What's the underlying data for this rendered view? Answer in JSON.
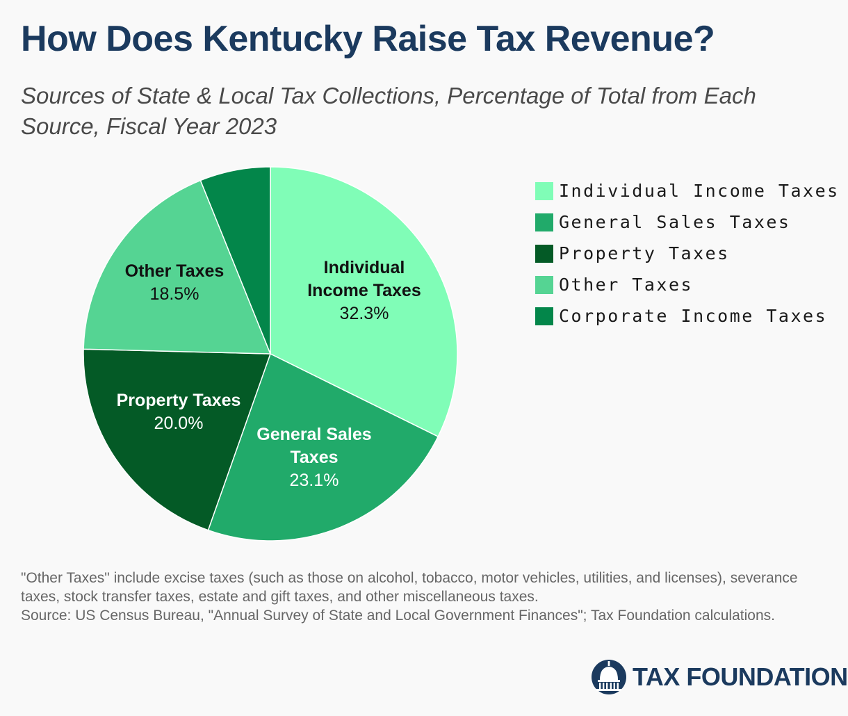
{
  "header": {
    "title": "How Does Kentucky Raise Tax Revenue?",
    "subtitle": "Sources of State & Local Tax Collections, Percentage of Total from Each Source, Fiscal Year 2023"
  },
  "chart_data": {
    "type": "pie",
    "title": "How Does Kentucky Raise Tax Revenue?",
    "subtitle": "Sources of State & Local Tax Collections, Percentage of Total from Each Source, Fiscal Year 2023",
    "slices": [
      {
        "label": "Individual Income Taxes",
        "value": 32.3,
        "display": "32.3%",
        "color": "#80fdb7",
        "text_lines": [
          "Individual",
          "Income Taxes"
        ],
        "text_color": "#111111"
      },
      {
        "label": "General Sales Taxes",
        "value": 23.1,
        "display": "23.1%",
        "color": "#21aa6a",
        "text_lines": [
          "General Sales",
          "Taxes"
        ],
        "text_color": "#ffffff"
      },
      {
        "label": "Property Taxes",
        "value": 20.0,
        "display": "20.0%",
        "color": "#045a26",
        "text_lines": [
          "Property Taxes"
        ],
        "text_color": "#ffffff"
      },
      {
        "label": "Other Taxes",
        "value": 18.5,
        "display": "18.5%",
        "color": "#55d493",
        "text_lines": [
          "Other Taxes"
        ],
        "text_color": "#111111"
      },
      {
        "label": "Corporate Income Taxes",
        "value": 6.1,
        "display": "",
        "color": "#03864a",
        "text_lines": [],
        "text_color": "#ffffff"
      }
    ],
    "legend": {
      "placement": "right",
      "entries": [
        "Individual Income Taxes",
        "General Sales Taxes",
        "Property Taxes",
        "Other Taxes",
        "Corporate Income Taxes"
      ]
    }
  },
  "notes": {
    "definition": "\"Other Taxes\" include excise taxes (such as those on alcohol, tobacco, motor vehicles, utilities, and licenses), severance taxes, stock transfer taxes, estate and gift taxes, and other miscellaneous taxes.",
    "source": "Source: US Census Bureau, \"Annual Survey of State and Local Government Finances\"; Tax Foundation calculations."
  },
  "brand": {
    "name": "TAX FOUNDATION",
    "logo_icon": "capitol-dome-icon",
    "color": "#1b3a5e"
  }
}
